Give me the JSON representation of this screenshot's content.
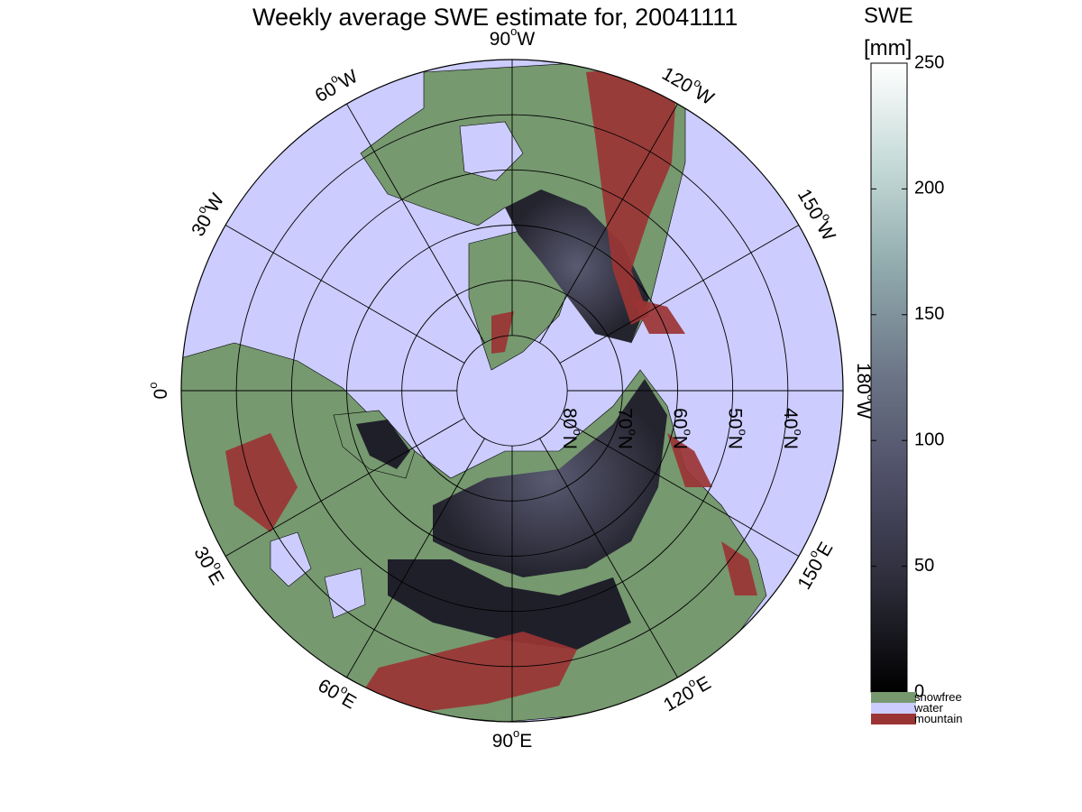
{
  "map": {
    "title": "Weekly average SWE estimate for, 20041111",
    "longitude_labels": [
      {
        "text_main": "90",
        "text_sup": "o",
        "text_dir": "W",
        "lon": "90W"
      },
      {
        "text_main": "120",
        "text_sup": "o",
        "text_dir": "W",
        "lon": "120W"
      },
      {
        "text_main": "150",
        "text_sup": "o",
        "text_dir": "W",
        "lon": "150W"
      },
      {
        "text_main": "180",
        "text_sup": "o",
        "text_dir": "W",
        "lon": "180W"
      },
      {
        "text_main": "150",
        "text_sup": "o",
        "text_dir": "E",
        "lon": "150E"
      },
      {
        "text_main": "120",
        "text_sup": "o",
        "text_dir": "E",
        "lon": "120E"
      },
      {
        "text_main": "90",
        "text_sup": "o",
        "text_dir": "E",
        "lon": "90E"
      },
      {
        "text_main": "60",
        "text_sup": "o",
        "text_dir": "E",
        "lon": "60E"
      },
      {
        "text_main": "30",
        "text_sup": "o",
        "text_dir": "E",
        "lon": "30E"
      },
      {
        "text_main": "0",
        "text_sup": "o",
        "text_dir": "",
        "lon": "0"
      },
      {
        "text_main": "30",
        "text_sup": "o",
        "text_dir": "W",
        "lon": "30W"
      },
      {
        "text_main": "60",
        "text_sup": "o",
        "text_dir": "W",
        "lon": "60W"
      }
    ],
    "latitude_labels": [
      {
        "text_main": "80",
        "text_sup": "o",
        "text_dir": "N",
        "lat": 80
      },
      {
        "text_main": "70",
        "text_sup": "o",
        "text_dir": "N",
        "lat": 70
      },
      {
        "text_main": "60",
        "text_sup": "o",
        "text_dir": "N",
        "lat": 60
      },
      {
        "text_main": "50",
        "text_sup": "o",
        "text_dir": "N",
        "lat": 50
      },
      {
        "text_main": "40",
        "text_sup": "o",
        "text_dir": "N",
        "lat": 40
      }
    ],
    "colors": {
      "water": "#ccccff",
      "snowfree": "#76996f",
      "mountain": "#9b3434",
      "snow_low": "#1f1f2a",
      "snow_mid": "#4e4e65",
      "coast": "#000000"
    }
  },
  "colorbar": {
    "title_line1": "SWE",
    "title_line2": "[mm]",
    "min": 0,
    "max": 250,
    "ticks": [
      "0",
      "50",
      "100",
      "150",
      "200",
      "250"
    ],
    "gradient_colors": [
      "#000000",
      "#2b2b38",
      "#4d4d66",
      "#6b7486",
      "#8ea8ab",
      "#c3d9d6",
      "#ffffff"
    ],
    "categories": [
      {
        "label": "snowfree",
        "color": "#76996f"
      },
      {
        "label": "water",
        "color": "#ccccff"
      },
      {
        "label": "mountain",
        "color": "#9b3434"
      }
    ]
  }
}
